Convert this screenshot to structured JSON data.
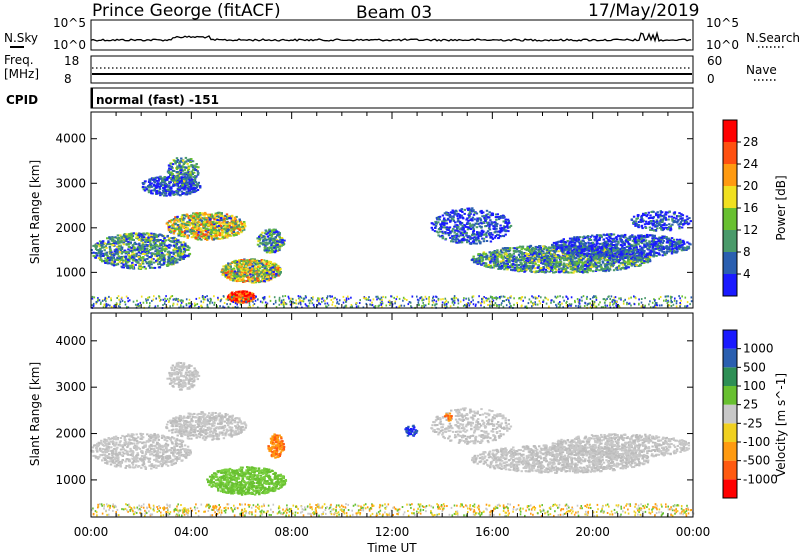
{
  "header": {
    "station": "Prince George (fitACF)",
    "beam": "Beam 03",
    "date": "17/May/2019"
  },
  "nsky_panel": {
    "left_label": "N.Sky",
    "left_ticks": [
      "10^5",
      "10^0"
    ],
    "right_ticks": [
      "10^5",
      "10^0"
    ],
    "right_label": "N.Search"
  },
  "freq_panel": {
    "left_label_line1": "Freq.",
    "left_label_line2": "[MHz]",
    "left_ticks": [
      "18",
      "8"
    ],
    "right_ticks": [
      "60",
      "0"
    ],
    "right_label": "Nave"
  },
  "cpid_panel": {
    "left_label": "CPID",
    "value": "normal (fast) -151"
  },
  "colors": {
    "power": [
      "#1a1aff",
      "#2a5fb0",
      "#4a9a6a",
      "#68c030",
      "#f0e020",
      "#ff9a10",
      "#ff5010",
      "#ff0000"
    ],
    "velocity": [
      "#ff0000",
      "#ff5a10",
      "#ff9a10",
      "#f0d020",
      "#c8c8c8",
      "#68c030",
      "#2e8f55",
      "#2a5fb0",
      "#1a1aff"
    ]
  },
  "chart_data": [
    {
      "type": "heatmap",
      "name": "power",
      "xlabel": "",
      "ylabel": "Slant Range [km]",
      "x_ticks": [
        "00:00",
        "04:00",
        "08:00",
        "12:00",
        "16:00",
        "20:00",
        "00:00"
      ],
      "y_ticks": [
        "1000",
        "2000",
        "3000",
        "4000"
      ],
      "ylim": [
        200,
        4600
      ],
      "colorbar_label": "Power [dB]",
      "colorbar_ticks": [
        "4",
        "8",
        "12",
        "16",
        "20",
        "24",
        "28"
      ]
    },
    {
      "type": "heatmap",
      "name": "velocity",
      "xlabel": "Time UT",
      "ylabel": "Slant Range [km]",
      "x_ticks": [
        "00:00",
        "04:00",
        "08:00",
        "12:00",
        "16:00",
        "20:00",
        "00:00"
      ],
      "y_ticks": [
        "1000",
        "2000",
        "3000",
        "4000"
      ],
      "ylim": [
        200,
        4600
      ],
      "colorbar_label": "Velocity [m s^-1]",
      "colorbar_ticks": [
        "-1000",
        "-500",
        "-100",
        "-25",
        "25",
        "100",
        "500",
        "1000"
      ]
    }
  ]
}
